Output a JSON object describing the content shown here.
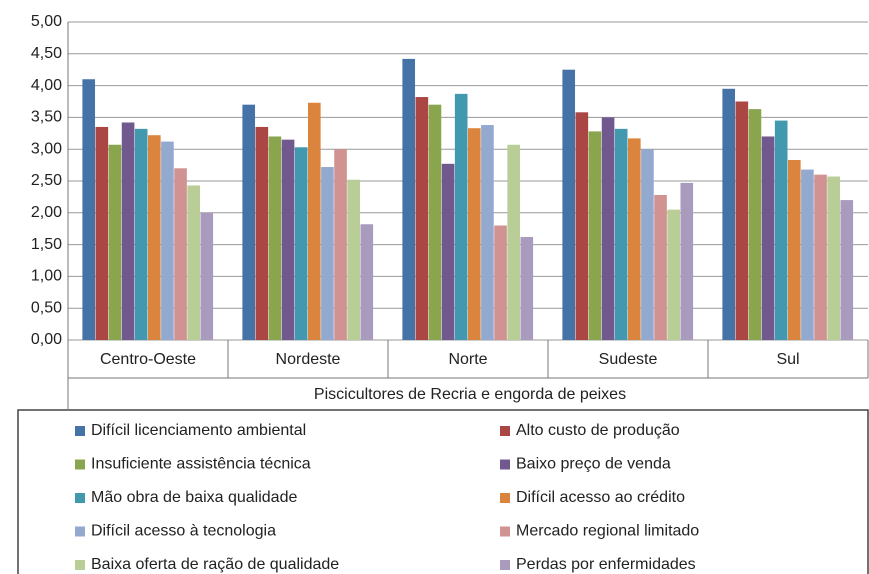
{
  "chart_data": {
    "type": "bar",
    "x_label": "Piscicultores de Recria e engorda de peixes",
    "categories": [
      "Centro-Oeste",
      "Nordeste",
      "Norte",
      "Sudeste",
      "Sul"
    ],
    "series": [
      {
        "name": "Difícil licenciamento ambiental",
        "color": "#4572a7",
        "values": [
          4.1,
          3.7,
          4.42,
          4.25,
          3.95
        ]
      },
      {
        "name": "Alto custo de produção",
        "color": "#aa4643",
        "values": [
          3.35,
          3.35,
          3.82,
          3.58,
          3.75
        ]
      },
      {
        "name": "Insuficiente assistência técnica",
        "color": "#89a54e",
        "values": [
          3.07,
          3.2,
          3.7,
          3.28,
          3.63
        ]
      },
      {
        "name": "Baixo preço de venda",
        "color": "#71588f",
        "values": [
          3.42,
          3.15,
          2.77,
          3.5,
          3.2
        ]
      },
      {
        "name": "Mão obra de baixa qualidade",
        "color": "#4198af",
        "values": [
          3.32,
          3.03,
          3.87,
          3.32,
          3.45
        ]
      },
      {
        "name": "Difícil acesso ao crédito",
        "color": "#db843d",
        "values": [
          3.22,
          3.73,
          3.33,
          3.17,
          2.83
        ]
      },
      {
        "name": "Difícil acesso à tecnologia",
        "color": "#93a9cf",
        "values": [
          3.12,
          2.72,
          3.38,
          3.0,
          2.68
        ]
      },
      {
        "name": "Mercado regional limitado",
        "color": "#d19392",
        "values": [
          2.7,
          3.0,
          1.8,
          2.28,
          2.6
        ]
      },
      {
        "name": "Baixa oferta de ração de qualidade",
        "color": "#b9cd96",
        "values": [
          2.43,
          2.52,
          3.07,
          2.05,
          2.57
        ]
      },
      {
        "name": "Perdas por enfermidades",
        "color": "#a99bbd",
        "values": [
          2.0,
          1.82,
          1.62,
          2.47,
          2.2
        ]
      }
    ],
    "ylim": [
      0,
      5
    ],
    "yticks": [
      {
        "value": 0,
        "label": "0,00"
      },
      {
        "value": 0.5,
        "label": "0,50"
      },
      {
        "value": 1,
        "label": "1,00"
      },
      {
        "value": 1.5,
        "label": "1,50"
      },
      {
        "value": 2,
        "label": "2,00"
      },
      {
        "value": 2.5,
        "label": "2,50"
      },
      {
        "value": 3,
        "label": "3,00"
      },
      {
        "value": 3.5,
        "label": "3,50"
      },
      {
        "value": 4,
        "label": "4,00"
      },
      {
        "value": 4.5,
        "label": "4,50"
      },
      {
        "value": 5,
        "label": "5,00"
      }
    ],
    "grid": true,
    "legend": "bottom"
  }
}
